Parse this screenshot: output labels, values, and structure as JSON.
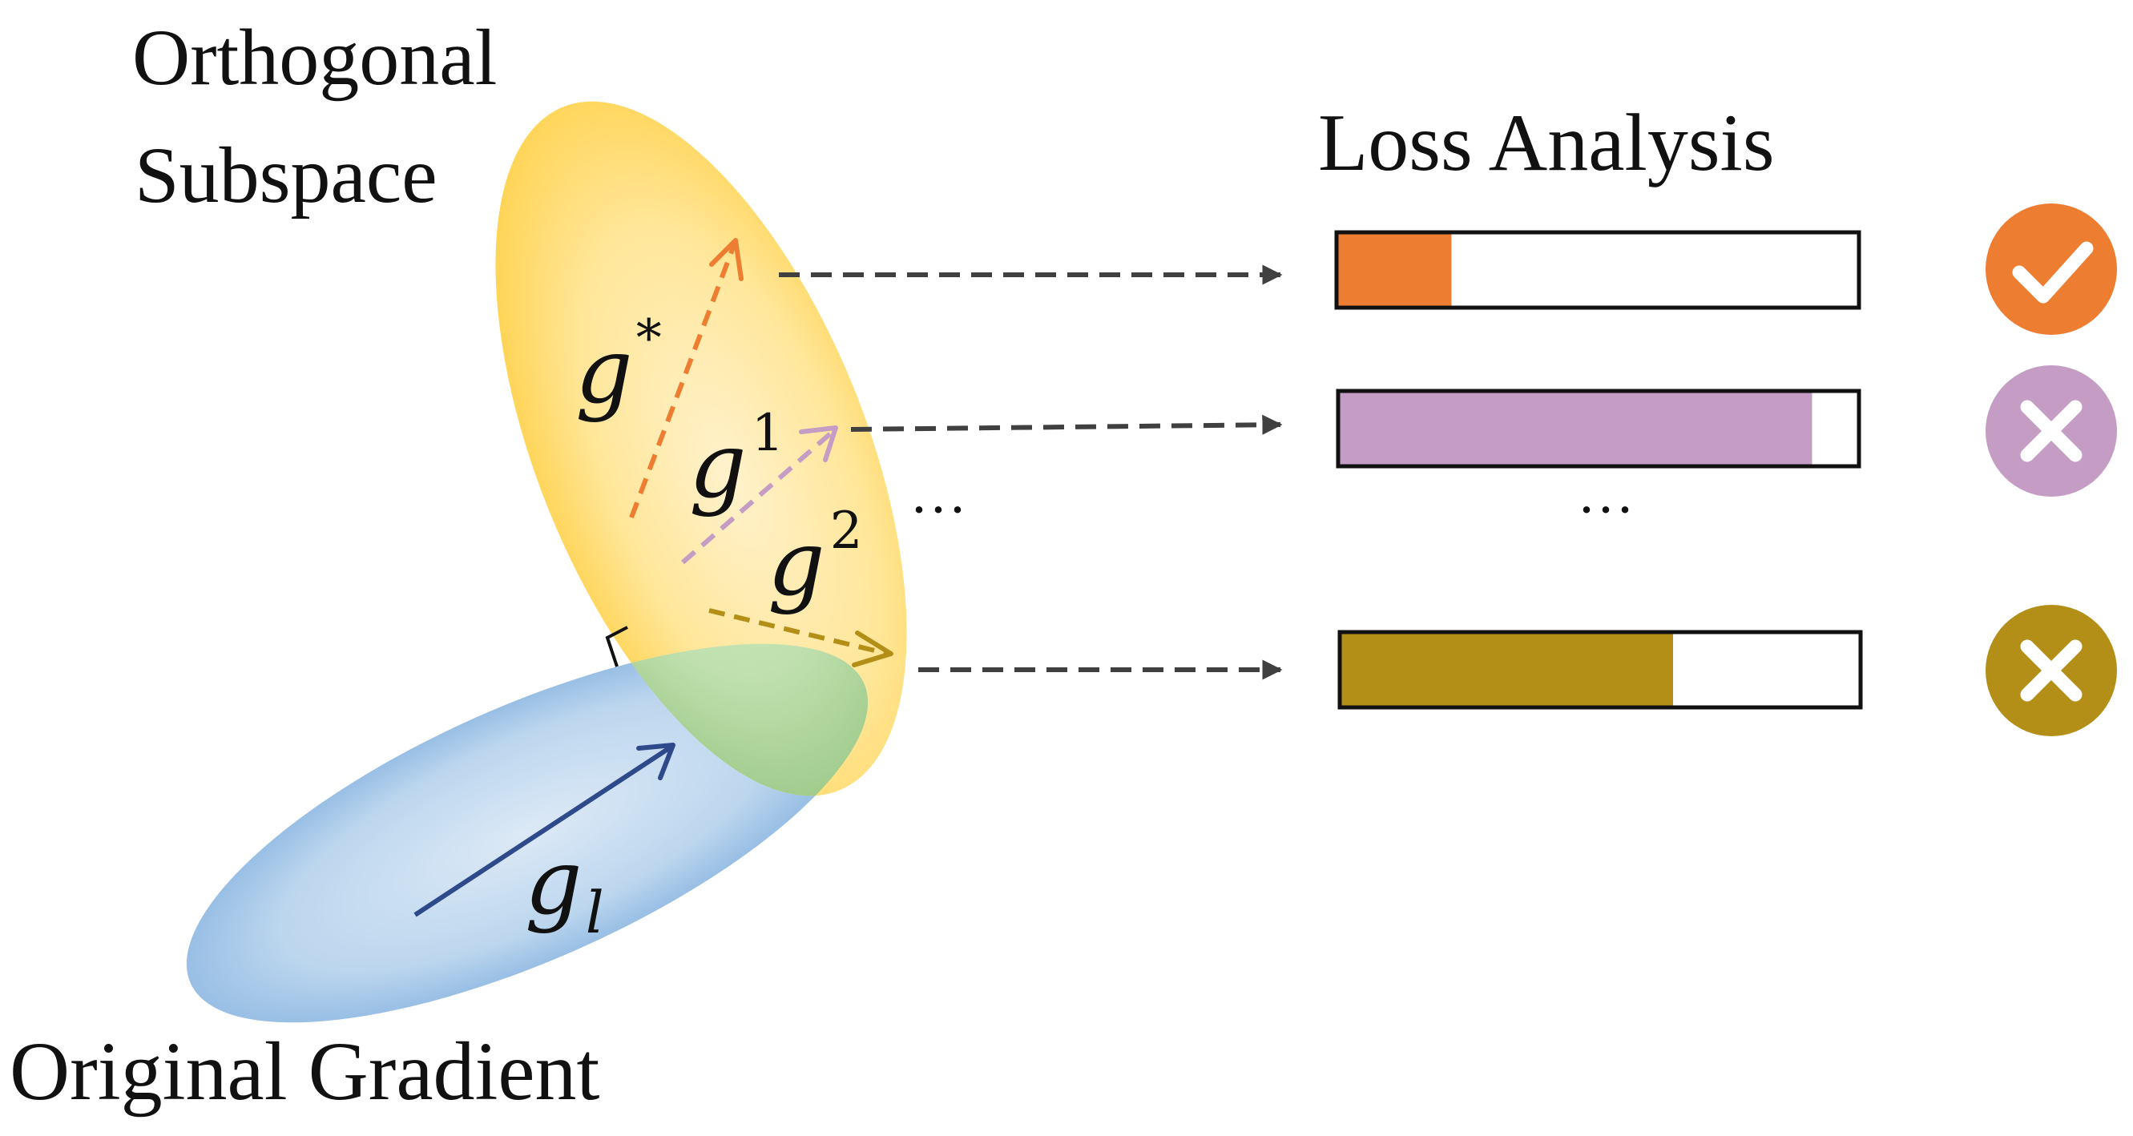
{
  "labels": {
    "orthogonal_line1": "Orthogonal",
    "orthogonal_line2": "Subspace",
    "loss_analysis": "Loss Analysis",
    "original_gradient": "Original Gradient",
    "ellipsis_middle": "···",
    "ellipsis_bars": "···"
  },
  "vectors": {
    "g_star": {
      "base": "g",
      "sup": "*"
    },
    "g_1": {
      "base": "g",
      "sup": "1"
    },
    "g_2": {
      "base": "g",
      "sup": "2"
    },
    "g_l": {
      "base": "g",
      "sub": "l"
    }
  },
  "loss_bars": [
    {
      "id": "g-star",
      "fill_fraction": 0.22,
      "color": "#ED7D31",
      "status": "accepted",
      "status_icon": "check-icon"
    },
    {
      "id": "g-1",
      "fill_fraction": 0.91,
      "color": "#C49CC4",
      "status": "rejected",
      "status_icon": "cross-icon"
    },
    {
      "id": "g-2",
      "fill_fraction": 0.64,
      "color": "#B38F17",
      "status": "rejected",
      "status_icon": "cross-icon"
    }
  ],
  "colors": {
    "subspace_yellow": "#FFD966",
    "gradient_blue": "#9DC3E6",
    "overlap_green": "#A9D18E",
    "gl_arrow": "#2F4A8A",
    "dashed_connector": "#404040",
    "accept_orange": "#ED7D31",
    "reject_purple": "#C49CC4",
    "reject_gold": "#B38F17"
  }
}
